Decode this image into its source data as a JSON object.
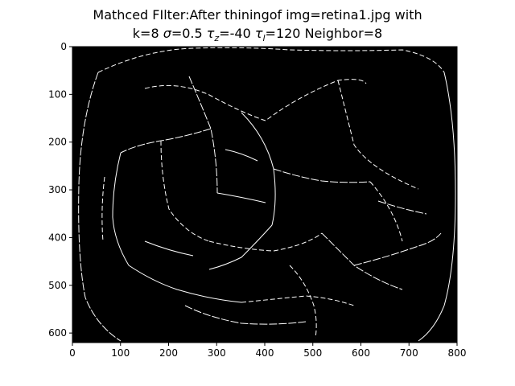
{
  "title": {
    "line1": "Mathced FIlter:After thiningof img=retina1.jpg with",
    "line2_prefix": "k=8 ",
    "sigma_symbol": "σ",
    "sigma_value": "=0.5 ",
    "tau_z_symbol": "τ",
    "tau_z_sub": "z",
    "tau_z_value": "=-40 ",
    "tau_l_symbol": "τ",
    "tau_l_sub": "l",
    "tau_l_value": "=120 Neighbor=8"
  },
  "chart_data": {
    "type": "image",
    "title": "Mathced FIlter:After thiningof img=retina1.jpg with k=8 σ=0.5 τz=-40 τl=120 Neighbor=8",
    "xlim": [
      0,
      800
    ],
    "ylim": [
      620,
      0
    ],
    "x_ticks": [
      0,
      100,
      200,
      300,
      400,
      500,
      600,
      700,
      800
    ],
    "y_ticks": [
      0,
      100,
      200,
      300,
      400,
      500,
      600
    ],
    "background_color": "#000000",
    "vessel_color": "#ffffff"
  }
}
